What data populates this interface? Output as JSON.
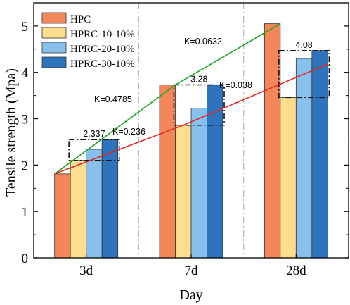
{
  "chart_data": {
    "type": "bar",
    "xlabel": "Day",
    "ylabel": "Tensile strength (Mpa)",
    "categories": [
      "3d",
      "7d",
      "28d"
    ],
    "ylim": [
      0,
      5.5
    ],
    "yticks": [
      "0",
      "1",
      "2",
      "3",
      "4",
      "5"
    ],
    "grid": false,
    "legend_position": "top-left",
    "series": [
      {
        "name": "HPC",
        "color": "#F4875A",
        "values": [
          1.81,
          3.73,
          5.05
        ]
      },
      {
        "name": "HPRC-10-10%",
        "color": "#FEDD8F",
        "values": [
          2.1,
          2.86,
          3.46
        ]
      },
      {
        "name": "HPRC-20-10%",
        "color": "#88C0EC",
        "values": [
          2.34,
          3.23,
          4.3
        ]
      },
      {
        "name": "HPRC-30-10%",
        "color": "#2E74BD",
        "values": [
          2.55,
          3.73,
          4.47
        ]
      }
    ],
    "group_labels": [
      "2.337",
      "3.28",
      "4.08"
    ],
    "trend_lines": [
      {
        "color": "#14A51E",
        "points": [
          1.81,
          3.73,
          5.05
        ],
        "slope_labels": [
          "K=0.4785",
          "K=0.0632"
        ]
      },
      {
        "color": "#E8251E",
        "points": [
          1.81,
          2.86,
          4.18
        ],
        "slope_labels": [
          "K=0.236",
          "K=0.038"
        ]
      }
    ]
  }
}
